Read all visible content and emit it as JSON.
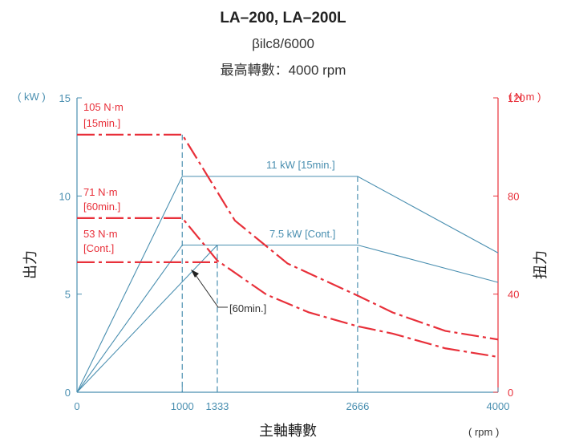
{
  "chart_data": {
    "type": "line",
    "title": "LA–200, LA–200L",
    "subtitle": "βilc8/6000",
    "subtitle2": "最高轉數：4000 rpm",
    "xlabel": "主軸轉數",
    "xunit": "( rpm )",
    "ylabel_left": "出力",
    "ylabel_right": "扭力",
    "yunit_left": "( kW )",
    "yunit_right": "( N·m )",
    "xlim": [
      0,
      4000
    ],
    "ylim_left": [
      0,
      15
    ],
    "ylim_right": [
      0,
      120
    ],
    "x_ticks": [
      0,
      1000,
      1333,
      2666,
      4000
    ],
    "x_tick_labels": [
      "0",
      "1000",
      "1333",
      "2666",
      "4000"
    ],
    "y_left_ticks": [
      0,
      5,
      10,
      15
    ],
    "y_left_tick_labels": [
      "0",
      "5",
      "10",
      "15"
    ],
    "y_right_ticks": [
      0,
      40,
      80,
      120
    ],
    "y_right_tick_labels": [
      "0",
      "40",
      "80",
      "120"
    ],
    "colors": {
      "power": "#4a8fb0",
      "torque": "#e8303a",
      "text": "#222222"
    },
    "power_series": [
      {
        "name": "11 kW [15min.]",
        "x": [
          0,
          1000,
          2666,
          4000
        ],
        "y": [
          0,
          11,
          11,
          7.1
        ]
      },
      {
        "name": "7.5 kW [Cont.]",
        "x": [
          0,
          1000,
          2666,
          4000
        ],
        "y": [
          0,
          7.5,
          7.5,
          5.6
        ]
      },
      {
        "name": "[60min.]",
        "x": [
          0,
          1333
        ],
        "y": [
          0,
          7.5
        ]
      }
    ],
    "torque_series": [
      {
        "name": "105 N·m [15min.]",
        "x": [
          0,
          1000,
          1500,
          2000,
          2666,
          3000,
          3500,
          4000
        ],
        "y": [
          105,
          105,
          70,
          52.5,
          39.4,
          32.5,
          25,
          21.5
        ]
      },
      {
        "name": "71 N·m [60min.]",
        "x": [
          0,
          1000,
          1333,
          1800,
          2200,
          2666,
          3000,
          3500,
          4000
        ],
        "y": [
          71,
          71,
          53.7,
          39.8,
          32.6,
          26.9,
          23.9,
          17.9,
          14.4
        ]
      },
      {
        "name": "53 N·m [Cont.]",
        "x": [
          0,
          1333
        ],
        "y": [
          53,
          53
        ]
      }
    ],
    "annotations": [
      {
        "text": "105 N·m",
        "text2": "[15min.]"
      },
      {
        "text": "71 N·m",
        "text2": "[60min.]"
      },
      {
        "text": "53 N·m",
        "text2": "[Cont.]"
      },
      {
        "text": "11 kW [15min.]"
      },
      {
        "text": "7.5 kW [Cont.]"
      },
      {
        "text": "[60min.]"
      }
    ]
  }
}
